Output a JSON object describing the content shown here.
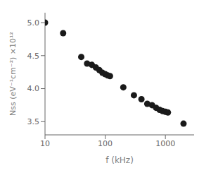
{
  "chart_data": {
    "type": "scatter",
    "x": [
      10,
      20,
      40,
      50,
      60,
      70,
      80,
      90,
      100,
      110,
      120,
      200,
      300,
      400,
      500,
      600,
      700,
      800,
      900,
      1000,
      1100,
      2000
    ],
    "values": [
      5.0,
      4.84,
      4.48,
      4.38,
      4.36,
      4.32,
      4.28,
      4.24,
      4.22,
      4.2,
      4.19,
      4.02,
      3.9,
      3.84,
      3.77,
      3.75,
      3.71,
      3.68,
      3.66,
      3.65,
      3.64,
      3.47
    ],
    "xlabel": "f (kHz)",
    "ylabel": "Nss (eV⁻¹cm⁻²) ×10¹²",
    "xlim": [
      10,
      3000
    ],
    "ylim": [
      3.3,
      5.15
    ],
    "xticks": [
      10,
      100,
      1000
    ],
    "yticks": [
      3.5,
      {
        "value": 4,
        "label": "4.0"
      },
      4.5,
      {
        "value": 5,
        "label": "5.0"
      }
    ],
    "log": "x",
    "color": "#1a1a1a"
  }
}
